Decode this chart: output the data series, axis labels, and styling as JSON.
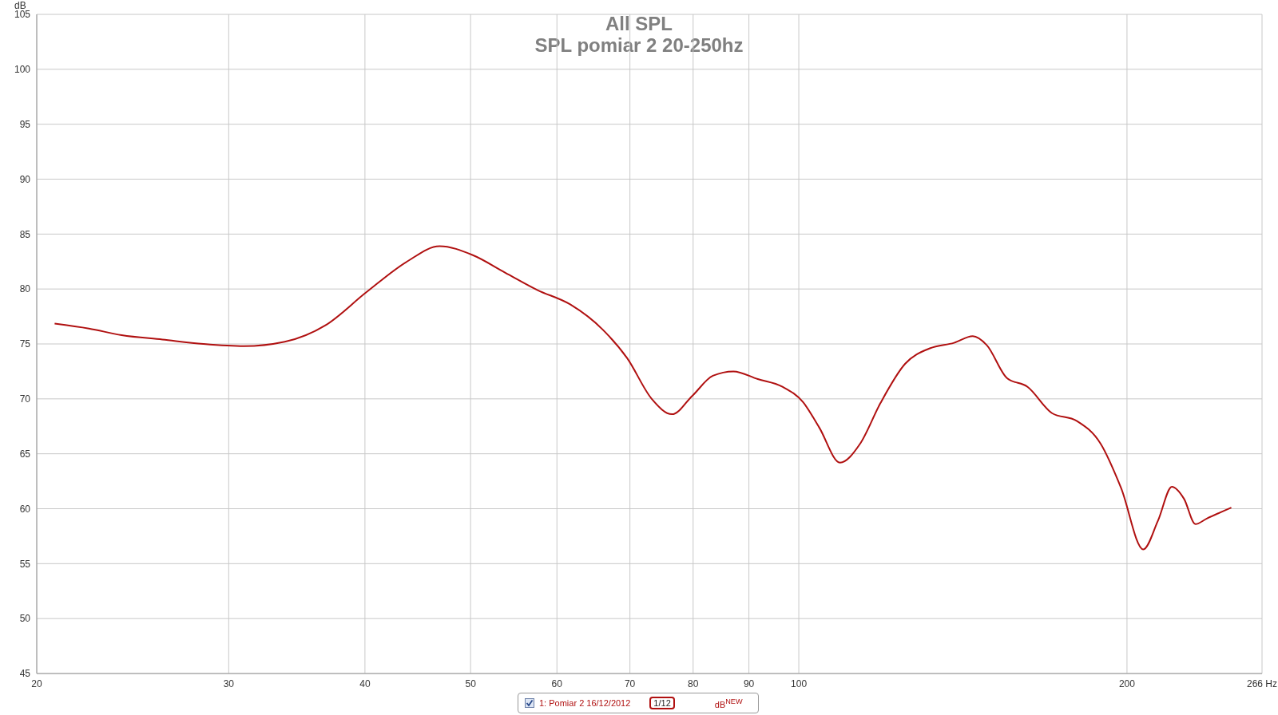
{
  "chart_data": {
    "type": "line",
    "title": "All SPL",
    "subtitle": "SPL pomiar 2 20-250hz",
    "ylabel": "dB",
    "annotations": [
      "1/12",
      "dB$^{NEW}$"
    ],
    "log": "x",
    "grid": true,
    "legend": "bottom",
    "xlim": [
      20,
      266
    ],
    "xticks": [
      20,
      30,
      40,
      50,
      60,
      70,
      80,
      90,
      100,
      200,
      {
        "value": 266,
        "label": "266 Hz"
      }
    ],
    "ylim": [
      45,
      105
    ],
    "yticks": [
      45,
      50,
      55,
      60,
      65,
      70,
      75,
      80,
      85,
      90,
      95,
      100,
      105
    ],
    "x": [
      20.77,
      22.33,
      23.93,
      26.08,
      28.43,
      30.98,
      33.77,
      36.8,
      40.11,
      43.72,
      46.83,
      50.19,
      53.77,
      57.6,
      61.7,
      66.1,
      69.6,
      73.3,
      76.5,
      79.9,
      83.4,
      87.1,
      91.7,
      96.6,
      100.9,
      104.4,
      109.1,
      113.8,
      118.8,
      125.2,
      131.9,
      138.8,
      144.4,
      148.7,
      155.2,
      162.1,
      170.7,
      179.8,
      189.2,
      197.5,
      207,
      213.5,
      219.9,
      225.6,
      231.1,
      236.7,
      249.3
    ],
    "series": [
      {
        "name": "1: Pomiar 2 16/12/2012",
        "color": "#b01010",
        "values": [
          76.85,
          76.4,
          75.8,
          75.4,
          75.0,
          74.8,
          75.2,
          76.7,
          79.7,
          82.5,
          83.9,
          83.1,
          81.5,
          79.9,
          78.6,
          76.3,
          73.7,
          70.0,
          68.6,
          70.3,
          72.1,
          72.5,
          71.8,
          71.1,
          69.7,
          67.4,
          64.2,
          65.9,
          69.6,
          73.2,
          74.6,
          75.1,
          75.7,
          74.9,
          71.9,
          71.1,
          68.7,
          68.0,
          65.9,
          61.9,
          56.3,
          58.9,
          62.0,
          60.9,
          58.6,
          59.1,
          60.1
        ]
      }
    ]
  }
}
